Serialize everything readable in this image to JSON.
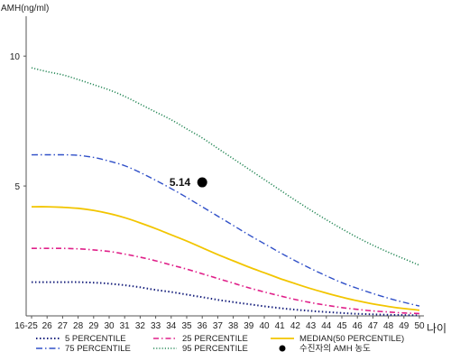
{
  "chart_data": {
    "type": "line",
    "ylabel": "AMH(ng/ml)",
    "xlabel": "나이",
    "ylim": [
      0,
      11.5
    ],
    "yticks": [
      5,
      10
    ],
    "x_categories": [
      "16-25",
      "26",
      "27",
      "28",
      "29",
      "30",
      "31",
      "32",
      "33",
      "34",
      "35",
      "36",
      "37",
      "38",
      "39",
      "40",
      "41",
      "42",
      "43",
      "44",
      "45",
      "46",
      "47",
      "48",
      "49",
      "50"
    ],
    "series": [
      {
        "name": "5 PERCENTILE",
        "color": "#1a237e",
        "dash": "1.5,2.5",
        "width": 2,
        "values": [
          1.3,
          1.3,
          1.3,
          1.3,
          1.28,
          1.24,
          1.18,
          1.1,
          1.0,
          0.92,
          0.82,
          0.72,
          0.62,
          0.53,
          0.45,
          0.37,
          0.3,
          0.24,
          0.19,
          0.15,
          0.11,
          0.08,
          0.06,
          0.04,
          0.03,
          0.02
        ]
      },
      {
        "name": "25 PERCENTILE",
        "color": "#e0218a",
        "dash": "6,3,1.5,3",
        "width": 1.6,
        "values": [
          2.6,
          2.6,
          2.6,
          2.58,
          2.54,
          2.48,
          2.38,
          2.26,
          2.12,
          1.96,
          1.8,
          1.62,
          1.44,
          1.26,
          1.08,
          0.92,
          0.77,
          0.63,
          0.51,
          0.41,
          0.32,
          0.25,
          0.19,
          0.15,
          0.11,
          0.09
        ]
      },
      {
        "name": "MEDIAN(50 PERCENTILE)",
        "color": "#f2c500",
        "dash": "",
        "width": 1.8,
        "values": [
          4.2,
          4.2,
          4.18,
          4.14,
          4.06,
          3.94,
          3.78,
          3.58,
          3.36,
          3.12,
          2.88,
          2.62,
          2.36,
          2.12,
          1.88,
          1.66,
          1.44,
          1.24,
          1.05,
          0.88,
          0.72,
          0.58,
          0.46,
          0.36,
          0.28,
          0.22
        ]
      },
      {
        "name": "75 PERCENTILE",
        "color": "#3050c8",
        "dash": "7,3,1.5,3",
        "width": 1.4,
        "values": [
          6.2,
          6.2,
          6.2,
          6.18,
          6.1,
          5.96,
          5.78,
          5.52,
          5.22,
          4.9,
          4.56,
          4.2,
          3.84,
          3.48,
          3.12,
          2.78,
          2.44,
          2.12,
          1.82,
          1.54,
          1.28,
          1.06,
          0.86,
          0.68,
          0.52,
          0.38
        ]
      },
      {
        "name": "95 PERCENTILE",
        "color": "#2a8a5a",
        "dash": "1.2,2",
        "width": 1.6,
        "values": [
          9.55,
          9.4,
          9.28,
          9.1,
          8.9,
          8.7,
          8.45,
          8.15,
          7.85,
          7.55,
          7.2,
          6.85,
          6.45,
          6.05,
          5.65,
          5.25,
          4.85,
          4.45,
          4.07,
          3.7,
          3.35,
          3.02,
          2.72,
          2.45,
          2.2,
          1.95
        ]
      }
    ],
    "patient": {
      "label": "수진자의 AMH 농도",
      "age": "36",
      "value": 5.14,
      "display": "5.14",
      "color": "#000000"
    },
    "legend_placement": "bottom",
    "grid": false
  }
}
